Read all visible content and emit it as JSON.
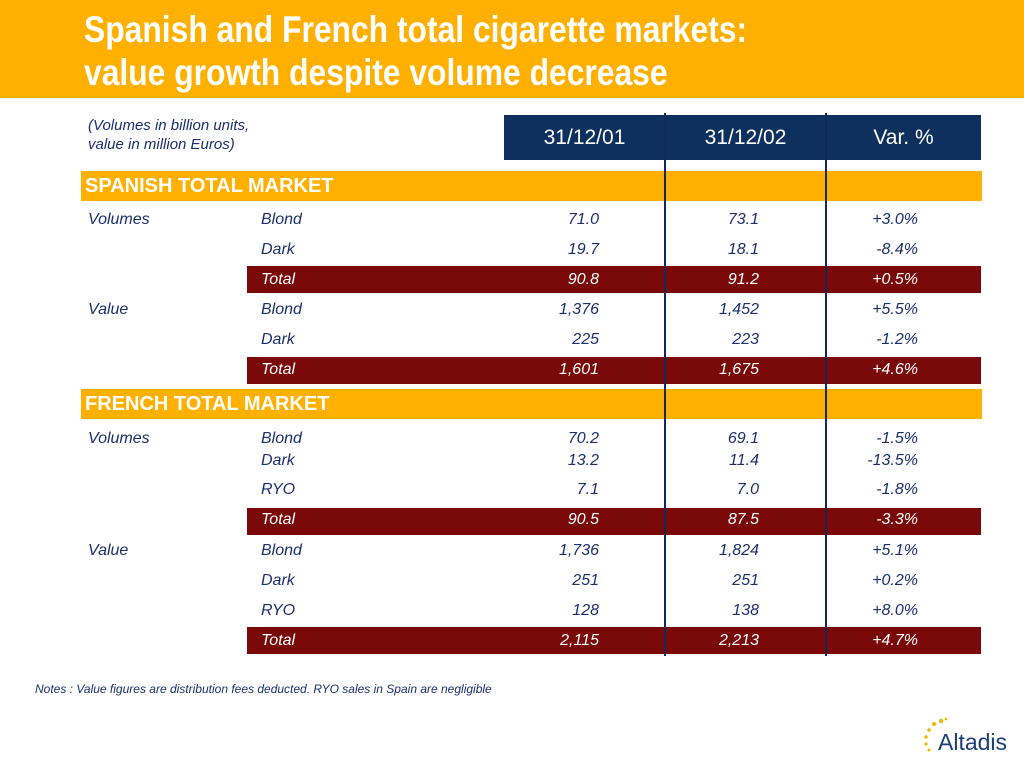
{
  "title": {
    "line1": "Spanish and French total cigarette markets:",
    "line2": "value growth despite volume decrease"
  },
  "units_note": {
    "line1": "(Volumes in billion units,",
    "line2": "value in million Euros)"
  },
  "columns": [
    "31/12/01",
    "31/12/02",
    "Var. %"
  ],
  "sections": [
    {
      "label": "SPANISH TOTAL MARKET",
      "rows": [
        {
          "category": "Volumes",
          "item": "Blond",
          "v2001": "71.0",
          "v2002": "73.1",
          "var": "+3.0%",
          "total": false
        },
        {
          "category": "",
          "item": "Dark",
          "v2001": "19.7",
          "v2002": "18.1",
          "var": "-8.4%",
          "total": false
        },
        {
          "category": "",
          "item": "Total",
          "v2001": "90.8",
          "v2002": "91.2",
          "var": "+0.5%",
          "total": true
        },
        {
          "category": "Value",
          "item": "Blond",
          "v2001": "1,376",
          "v2002": "1,452",
          "var": "+5.5%",
          "total": false
        },
        {
          "category": "",
          "item": "Dark",
          "v2001": "225",
          "v2002": "223",
          "var": "-1.2%",
          "total": false
        },
        {
          "category": "",
          "item": "Total",
          "v2001": "1,601",
          "v2002": "1,675",
          "var": "+4.6%",
          "total": true
        }
      ]
    },
    {
      "label": "FRENCH TOTAL MARKET",
      "rows": [
        {
          "category": "Volumes",
          "item": "Blond",
          "v2001": "70.2",
          "v2002": "69.1",
          "var": "-1.5%",
          "total": false
        },
        {
          "category": "",
          "item": "Dark",
          "v2001": "13.2",
          "v2002": "11.4",
          "var": "-13.5%",
          "total": false
        },
        {
          "category": "",
          "item": "RYO",
          "v2001": "7.1",
          "v2002": "7.0",
          "var": "-1.8%",
          "total": false
        },
        {
          "category": "",
          "item": "Total",
          "v2001": "90.5",
          "v2002": "87.5",
          "var": "-3.3%",
          "total": true
        },
        {
          "category": "Value",
          "item": "Blond",
          "v2001": "1,736",
          "v2002": "1,824",
          "var": "+5.1%",
          "total": false
        },
        {
          "category": "",
          "item": "Dark",
          "v2001": "251",
          "v2002": "251",
          "var": "+0.2%",
          "total": false
        },
        {
          "category": "",
          "item": "RYO",
          "v2001": "128",
          "v2002": "138",
          "var": "+8.0%",
          "total": false
        },
        {
          "category": "",
          "item": "Total",
          "v2001": "2,115",
          "v2002": "2,213",
          "var": "+4.7%",
          "total": true
        }
      ]
    }
  ],
  "notes": "Notes : Value figures are distribution fees deducted.   RYO sales in Spain are negligible",
  "logo": {
    "text": "Altadis",
    "icon": "altadis-star-arc-icon"
  },
  "colors": {
    "orange": "#FFB000",
    "navy": "#0d305e",
    "maroon": "#7a0a0a",
    "text": "#1a2f6e"
  }
}
